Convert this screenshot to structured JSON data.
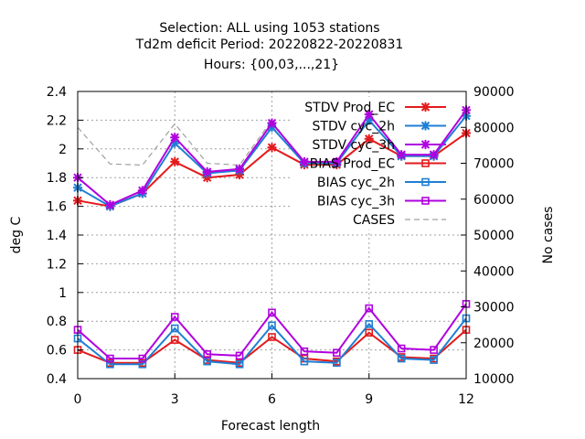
{
  "chart_data": {
    "type": "line",
    "title_lines": [
      "Selection: ALL using  1053 stations",
      "Td2m deficit   Period: 20220822-20220831",
      "Hours: {00,03,...,21}"
    ],
    "xlabel": "Forecast length",
    "ylabel": "deg C",
    "y2label": "No cases",
    "x": [
      0,
      1,
      2,
      3,
      4,
      5,
      6,
      7,
      8,
      9,
      10,
      11,
      12
    ],
    "xticks": [
      0,
      3,
      6,
      9,
      12
    ],
    "xlim": [
      0,
      12
    ],
    "ylim": [
      0.4,
      2.4
    ],
    "yticks": [
      "0.4",
      "0.6",
      "0.8",
      "1",
      "1.2",
      "1.4",
      "1.6",
      "1.8",
      "2",
      "2.2",
      "2.4"
    ],
    "y2lim": [
      10000,
      90000
    ],
    "y2ticks": [
      "10000",
      "20000",
      "30000",
      "40000",
      "50000",
      "60000",
      "70000",
      "80000",
      "90000"
    ],
    "grid": true,
    "legend_position": "top-right",
    "series": [
      {
        "name": "STDV Prod_EC",
        "axis": "y1",
        "color": "#e41a1c",
        "marker": "star",
        "dash": "",
        "values": [
          1.64,
          1.6,
          1.69,
          1.91,
          1.8,
          1.82,
          2.01,
          1.89,
          1.89,
          2.07,
          1.95,
          1.95,
          2.11
        ]
      },
      {
        "name": "STDV cyc_2h",
        "axis": "y1",
        "color": "#1e7fd4",
        "marker": "star",
        "dash": "",
        "values": [
          1.73,
          1.6,
          1.69,
          2.04,
          1.83,
          1.85,
          2.15,
          1.9,
          1.9,
          2.2,
          1.95,
          1.95,
          2.23
        ]
      },
      {
        "name": "STDV cyc_3h",
        "axis": "y1",
        "color": "#b000e0",
        "marker": "star",
        "dash": "",
        "values": [
          1.8,
          1.61,
          1.71,
          2.08,
          1.84,
          1.86,
          2.18,
          1.91,
          1.91,
          2.24,
          1.96,
          1.96,
          2.27
        ]
      },
      {
        "name": "BIAS Prod_EC",
        "axis": "y1",
        "color": "#e41a1c",
        "marker": "square",
        "dash": "",
        "values": [
          0.6,
          0.51,
          0.51,
          0.67,
          0.53,
          0.51,
          0.69,
          0.54,
          0.52,
          0.72,
          0.55,
          0.54,
          0.74
        ]
      },
      {
        "name": "BIAS cyc_2h",
        "axis": "y1",
        "color": "#1e7fd4",
        "marker": "square",
        "dash": "",
        "values": [
          0.68,
          0.5,
          0.5,
          0.75,
          0.52,
          0.5,
          0.77,
          0.52,
          0.51,
          0.78,
          0.54,
          0.53,
          0.82
        ]
      },
      {
        "name": "BIAS cyc_3h",
        "axis": "y1",
        "color": "#b000e0",
        "marker": "square",
        "dash": "",
        "values": [
          0.74,
          0.54,
          0.54,
          0.83,
          0.57,
          0.56,
          0.86,
          0.59,
          0.58,
          0.89,
          0.61,
          0.6,
          0.92
        ]
      },
      {
        "name": "CASES",
        "axis": "y2",
        "color": "#a0a0a0",
        "marker": "none",
        "dash": "6,4",
        "values": [
          80000,
          69800,
          69500,
          81000,
          70000,
          69500,
          82000,
          69000,
          69000,
          83000,
          68500,
          68000,
          83000
        ]
      }
    ]
  }
}
